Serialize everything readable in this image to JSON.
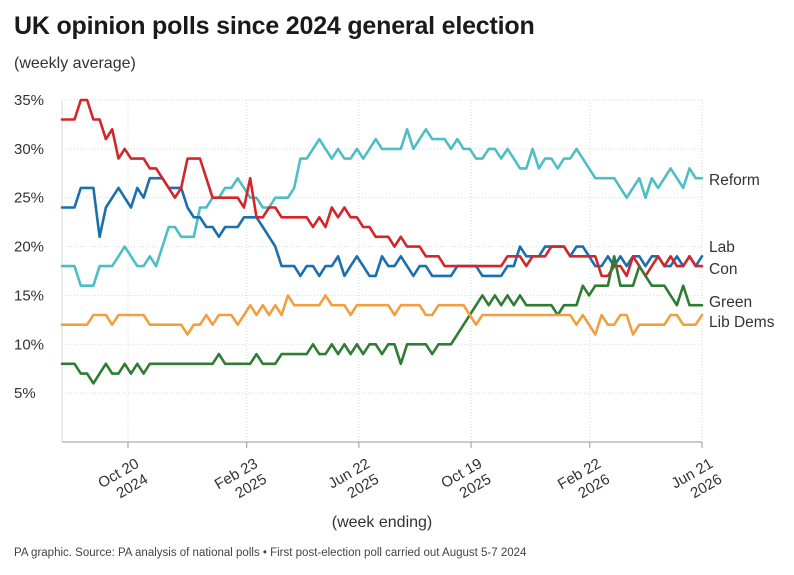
{
  "title": "UK opinion polls since 2024 general election",
  "subtitle": "(weekly average)",
  "source": "PA graphic. Source: PA analysis of national polls • First post-election poll carried out August 5-7 2024",
  "chart_data": {
    "type": "line",
    "xlabel": "(week ending)",
    "ylabel": "",
    "ylim": [
      0,
      35
    ],
    "y_ticks": [
      "5%",
      "10%",
      "15%",
      "20%",
      "25%",
      "30%",
      "35%"
    ],
    "y_tick_values": [
      5,
      10,
      15,
      20,
      25,
      30,
      35
    ],
    "grid": true,
    "legend": "right-end labels",
    "x_ticks": [
      {
        "date": "2024-10-20",
        "line1": "Oct 20",
        "line2": "2024"
      },
      {
        "date": "2025-02-23",
        "line1": "Feb 23",
        "line2": "2025"
      },
      {
        "date": "2025-06-22",
        "line1": "Jun 22",
        "line2": "2025"
      },
      {
        "date": "2025-10-19",
        "line1": "Oct 19",
        "line2": "2025"
      },
      {
        "date": "2026-02-22",
        "line1": "Feb 22",
        "line2": "2026"
      },
      {
        "date": "2026-06-21",
        "line1": "Jun 21",
        "line2": "2026"
      }
    ],
    "x_start": "2024-08-11",
    "x_end": "2026-06-21",
    "series": [
      {
        "name": "Reform",
        "color": "#4dbfc4",
        "values": [
          18,
          18,
          18,
          16,
          16,
          16,
          18,
          18,
          18,
          19,
          20,
          19,
          18,
          18,
          19,
          18,
          20,
          22,
          22,
          21,
          21,
          21,
          24,
          24,
          25,
          25,
          26,
          26,
          27,
          26,
          25,
          25,
          24,
          24,
          25,
          25,
          25,
          26,
          29,
          29,
          30,
          31,
          30,
          29,
          30,
          29,
          29,
          30,
          29,
          30,
          31,
          30,
          30,
          30,
          30,
          32,
          30,
          31,
          32,
          31,
          31,
          31,
          30,
          31,
          30,
          30,
          29,
          29,
          30,
          30,
          29,
          30,
          29,
          28,
          28,
          30,
          28,
          29,
          29,
          28,
          29,
          29,
          30,
          29,
          28,
          27,
          27,
          27,
          27,
          26,
          25,
          26,
          27,
          25,
          27,
          26,
          27,
          28,
          27,
          26,
          28,
          27,
          27
        ]
      },
      {
        "name": "Lab",
        "color": "#1a6faf",
        "values": [
          24,
          24,
          24,
          26,
          26,
          26,
          21,
          24,
          25,
          26,
          25,
          24,
          26,
          25,
          27,
          27,
          27,
          26,
          26,
          26,
          24,
          23,
          23,
          22,
          22,
          21,
          22,
          22,
          22,
          23,
          23,
          23,
          22,
          21,
          20,
          18,
          18,
          18,
          17,
          18,
          18,
          17,
          18,
          18,
          19,
          17,
          18,
          19,
          18,
          17,
          17,
          19,
          18,
          18,
          19,
          18,
          17,
          18,
          18,
          17,
          17,
          17,
          17,
          18,
          18,
          18,
          18,
          17,
          17,
          17,
          17,
          18,
          18,
          20,
          19,
          19,
          19,
          20,
          20,
          20,
          20,
          19,
          20,
          20,
          19,
          18,
          18,
          19,
          18,
          19,
          18,
          19,
          19,
          18,
          19,
          19,
          18,
          18,
          19,
          18,
          19,
          18,
          19
        ]
      },
      {
        "name": "Con",
        "color": "#d2262b",
        "values": [
          33,
          33,
          33,
          35,
          35,
          33,
          33,
          31,
          32,
          29,
          30,
          29,
          29,
          29,
          28,
          28,
          27,
          26,
          25,
          26,
          29,
          29,
          29,
          27,
          25,
          25,
          25,
          25,
          25,
          24,
          27,
          23,
          23,
          24,
          24,
          23,
          23,
          23,
          23,
          23,
          22,
          23,
          22,
          24,
          23,
          24,
          23,
          23,
          22,
          22,
          21,
          21,
          21,
          20,
          21,
          20,
          20,
          20,
          19,
          19,
          19,
          18,
          18,
          18,
          18,
          18,
          18,
          18,
          18,
          18,
          18,
          19,
          19,
          19,
          18,
          19,
          19,
          19,
          20,
          20,
          20,
          19,
          19,
          19,
          19,
          19,
          17,
          17,
          18,
          18,
          17,
          19,
          18,
          17,
          18,
          19,
          18,
          19,
          18,
          18,
          19,
          18,
          18
        ]
      },
      {
        "name": "Green",
        "color": "#2e7d32",
        "values": [
          8,
          8,
          8,
          7,
          7,
          6,
          7,
          8,
          7,
          7,
          8,
          7,
          8,
          7,
          8,
          8,
          8,
          8,
          8,
          8,
          8,
          8,
          8,
          8,
          8,
          9,
          8,
          8,
          8,
          8,
          8,
          9,
          8,
          8,
          8,
          9,
          9,
          9,
          9,
          9,
          10,
          9,
          9,
          10,
          9,
          10,
          9,
          10,
          9,
          10,
          10,
          9,
          10,
          10,
          8,
          10,
          10,
          10,
          10,
          9,
          10,
          10,
          10,
          11,
          12,
          13,
          14,
          15,
          14,
          15,
          14,
          15,
          14,
          15,
          14,
          14,
          14,
          14,
          14,
          13,
          14,
          14,
          14,
          16,
          15,
          16,
          16,
          16,
          19,
          16,
          16,
          16,
          18,
          17,
          16,
          16,
          16,
          15,
          14,
          16,
          14,
          14,
          14
        ]
      },
      {
        "name": "Lib Dems",
        "color": "#f0a040",
        "values": [
          12,
          12,
          12,
          12,
          12,
          13,
          13,
          13,
          12,
          13,
          13,
          13,
          13,
          13,
          12,
          12,
          12,
          12,
          12,
          12,
          11,
          12,
          12,
          13,
          12,
          13,
          13,
          13,
          12,
          13,
          14,
          13,
          14,
          13,
          14,
          13,
          15,
          14,
          14,
          14,
          14,
          14,
          15,
          14,
          14,
          14,
          13,
          14,
          14,
          14,
          14,
          14,
          14,
          13,
          14,
          14,
          14,
          14,
          13,
          13,
          14,
          14,
          14,
          14,
          14,
          13,
          12,
          13,
          13,
          13,
          13,
          13,
          13,
          13,
          13,
          13,
          13,
          13,
          13,
          13,
          13,
          13,
          12,
          13,
          12,
          11,
          13,
          12,
          12,
          13,
          13,
          11,
          12,
          12,
          12,
          12,
          12,
          13,
          13,
          12,
          12,
          12,
          13
        ]
      }
    ]
  }
}
